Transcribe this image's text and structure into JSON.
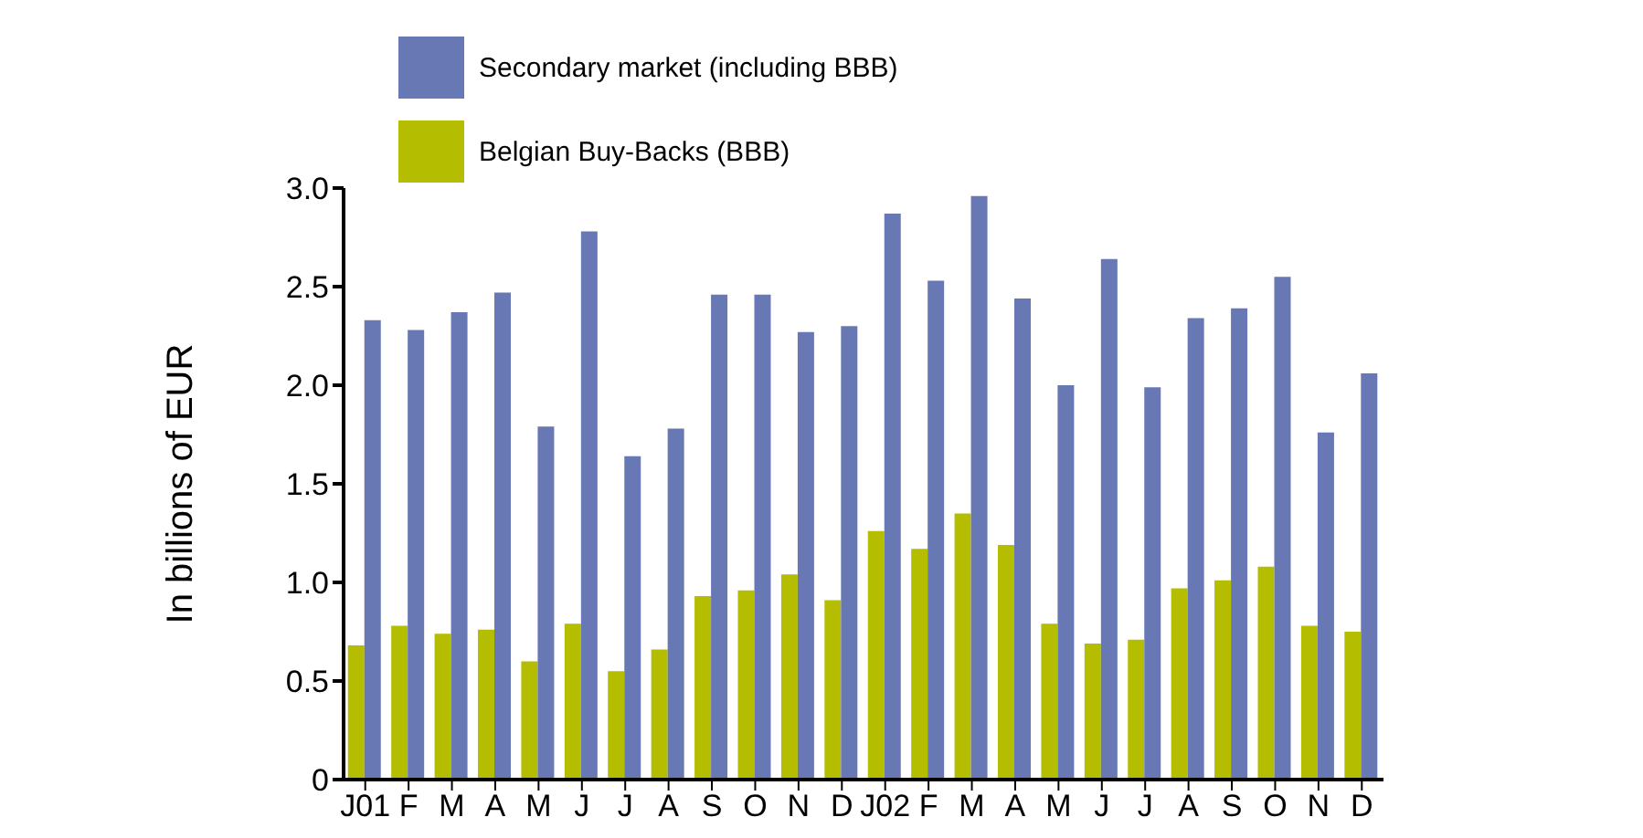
{
  "chart_data": {
    "type": "bar",
    "ylabel": "In billions of EUR",
    "categories": [
      "J01",
      "F",
      "M",
      "A",
      "M",
      "J",
      "J",
      "A",
      "S",
      "O",
      "N",
      "D",
      "J02",
      "F",
      "M",
      "A",
      "M",
      "J",
      "J",
      "A",
      "S",
      "O",
      "N",
      "D"
    ],
    "series": [
      {
        "name": "Belgian Buy-Backs (BBB)",
        "color": "#b5bd00",
        "values": [
          0.68,
          0.78,
          0.74,
          0.76,
          0.6,
          0.79,
          0.55,
          0.66,
          0.93,
          0.96,
          1.04,
          0.91,
          1.26,
          1.17,
          1.35,
          1.19,
          0.79,
          0.69,
          0.71,
          0.97,
          1.01,
          1.08,
          0.78,
          0.75
        ]
      },
      {
        "name": "Secondary market (including BBB)",
        "color": "#6878b4",
        "values": [
          2.33,
          2.28,
          2.37,
          2.47,
          1.79,
          2.78,
          1.64,
          1.78,
          2.46,
          2.46,
          2.27,
          2.3,
          2.87,
          2.53,
          2.96,
          2.44,
          2.0,
          2.64,
          1.99,
          2.34,
          2.39,
          2.55,
          1.76,
          2.06
        ]
      }
    ],
    "ylim": [
      0,
      3
    ],
    "yticks": [
      0,
      0.5,
      {
        "value": 1,
        "label": "1.0"
      },
      1.5,
      {
        "value": 2,
        "label": "2.0"
      },
      2.5,
      {
        "value": 3,
        "label": "3.0"
      }
    ],
    "grid": false,
    "legend": "top"
  }
}
